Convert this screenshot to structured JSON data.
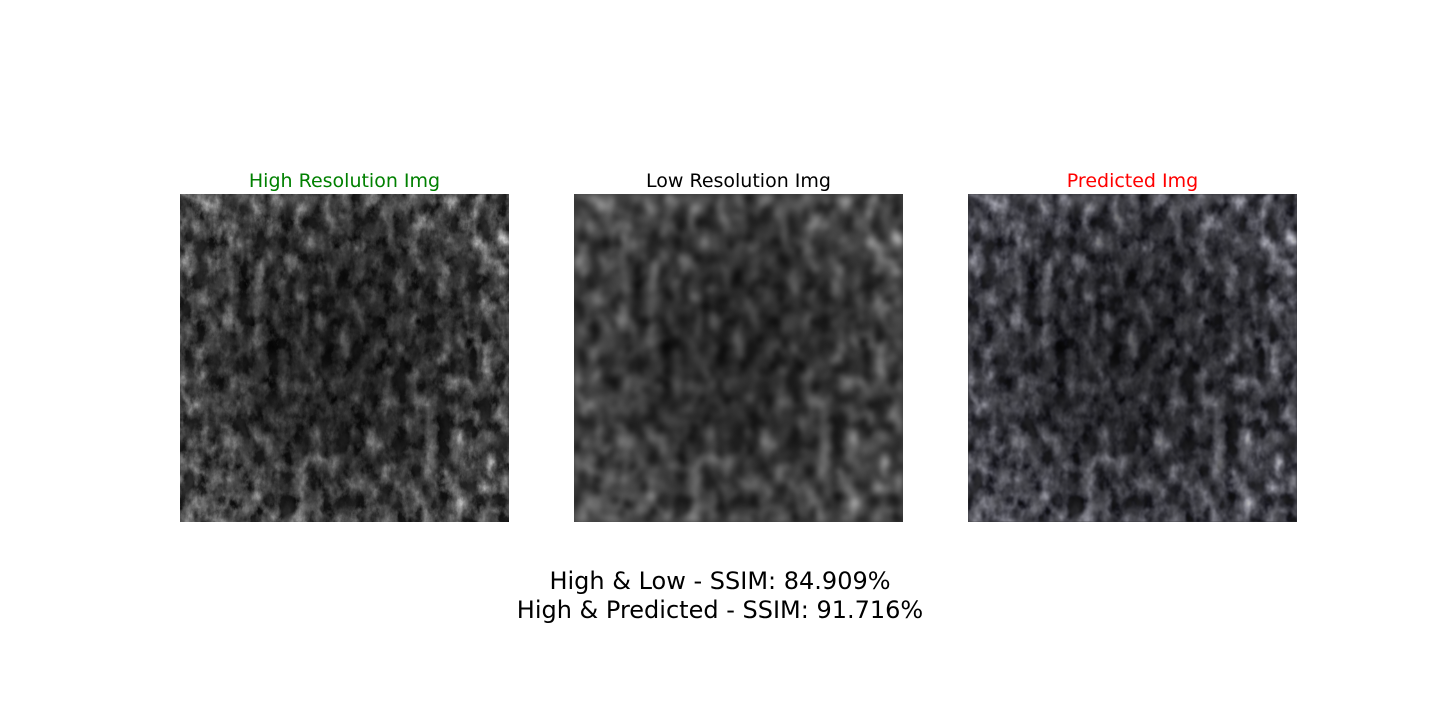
{
  "panels": [
    {
      "title": "High Resolution Img",
      "title_color": "#008000",
      "image": "sharp grayscale texture"
    },
    {
      "title": "Low Resolution Img",
      "title_color": "#000000",
      "image": "blurred grayscale texture"
    },
    {
      "title": "Predicted Img",
      "title_color": "#ff0000",
      "image": "reconstructed grayscale texture"
    }
  ],
  "caption": {
    "line1": "High & Low - SSIM: 84.909%",
    "line2": "High & Predicted - SSIM: 91.716%"
  }
}
